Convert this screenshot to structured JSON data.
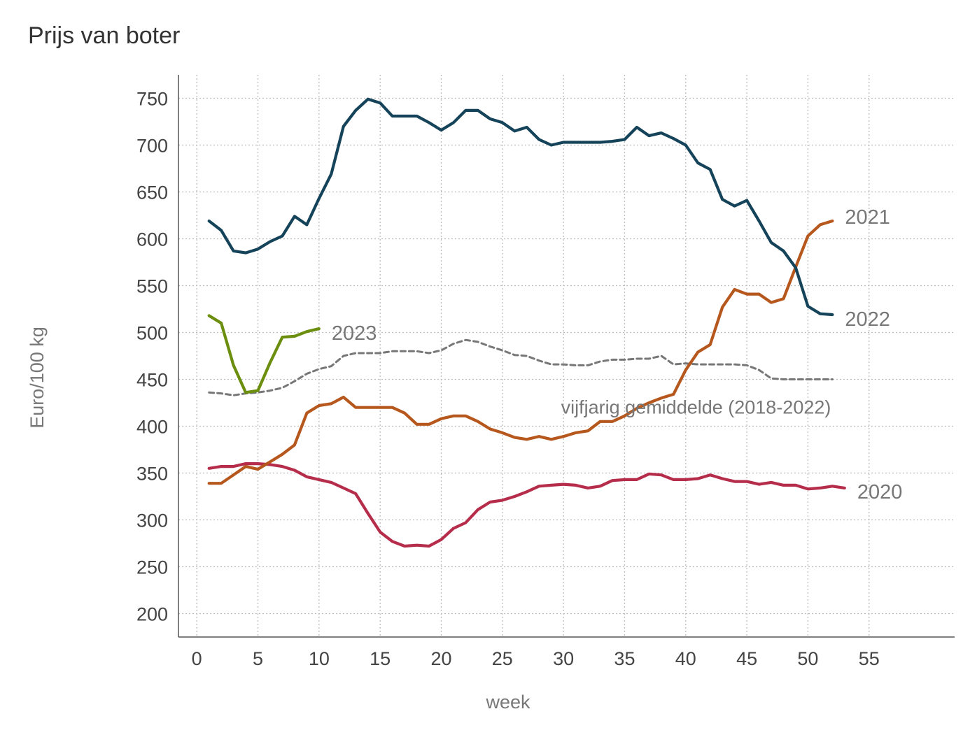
{
  "chart_data": {
    "type": "line",
    "title": "Prijs van boter",
    "xlabel": "week",
    "ylabel": "Euro/100 kg",
    "xlim": [
      -1.5,
      62
    ],
    "ylim": [
      175,
      775
    ],
    "xticks": [
      0,
      5,
      10,
      15,
      20,
      25,
      30,
      35,
      40,
      45,
      50,
      55
    ],
    "yticks": [
      200,
      250,
      300,
      350,
      400,
      450,
      500,
      550,
      600,
      650,
      700,
      750
    ],
    "grid": true,
    "legend": "direct labels at line ends",
    "series": [
      {
        "name": "2022",
        "color": "#15435a",
        "dashed": false,
        "x": [
          1,
          2,
          3,
          4,
          5,
          6,
          7,
          8,
          9,
          10,
          11,
          12,
          13,
          14,
          15,
          16,
          17,
          18,
          19,
          20,
          21,
          22,
          23,
          24,
          25,
          26,
          27,
          28,
          29,
          30,
          31,
          32,
          33,
          34,
          35,
          36,
          37,
          38,
          39,
          40,
          41,
          42,
          43,
          44,
          45,
          46,
          47,
          48,
          49,
          50,
          51,
          52
        ],
        "values": [
          619,
          609,
          587,
          585,
          589,
          597,
          603,
          624,
          615,
          643,
          669,
          720,
          737,
          749,
          745,
          731,
          731,
          731,
          724,
          716,
          724,
          737,
          737,
          728,
          724,
          715,
          719,
          706,
          700,
          703,
          703,
          703,
          703,
          704,
          706,
          719,
          710,
          713,
          707,
          700,
          681,
          674,
          642,
          635,
          641,
          619,
          596,
          587,
          569,
          528,
          520,
          519
        ]
      },
      {
        "name": "2021",
        "color": "#b6571d",
        "dashed": false,
        "x": [
          1,
          2,
          3,
          4,
          5,
          6,
          7,
          8,
          9,
          10,
          11,
          12,
          13,
          14,
          15,
          16,
          17,
          18,
          19,
          20,
          21,
          22,
          23,
          24,
          25,
          26,
          27,
          28,
          29,
          30,
          31,
          32,
          33,
          34,
          35,
          36,
          37,
          38,
          39,
          40,
          41,
          42,
          43,
          44,
          45,
          46,
          47,
          48,
          49,
          50,
          51,
          52
        ],
        "values": [
          339,
          339,
          348,
          357,
          354,
          362,
          370,
          380,
          414,
          422,
          424,
          431,
          420,
          420,
          420,
          420,
          414,
          402,
          402,
          408,
          411,
          411,
          405,
          397,
          393,
          388,
          386,
          389,
          386,
          389,
          393,
          395,
          405,
          405,
          411,
          419,
          425,
          430,
          434,
          460,
          479,
          487,
          527,
          546,
          541,
          541,
          532,
          536,
          570,
          603,
          615,
          619
        ]
      },
      {
        "name": "2023",
        "color": "#6b8e0e",
        "dashed": false,
        "x": [
          1,
          2,
          3,
          4,
          5,
          6,
          7,
          8,
          9,
          10
        ],
        "values": [
          518,
          510,
          465,
          436,
          438,
          468,
          495,
          496,
          501,
          504
        ]
      },
      {
        "name": "2020",
        "color": "#b52d4a",
        "dashed": false,
        "x": [
          1,
          2,
          3,
          4,
          5,
          6,
          7,
          8,
          9,
          10,
          11,
          12,
          13,
          14,
          15,
          16,
          17,
          18,
          19,
          20,
          21,
          22,
          23,
          24,
          25,
          26,
          27,
          28,
          29,
          30,
          31,
          32,
          33,
          34,
          35,
          36,
          37,
          38,
          39,
          40,
          41,
          42,
          43,
          44,
          45,
          46,
          47,
          48,
          49,
          50,
          51,
          52,
          53
        ],
        "values": [
          355,
          357,
          357,
          360,
          360,
          359,
          357,
          353,
          346,
          343,
          340,
          334,
          328,
          307,
          287,
          277,
          272,
          273,
          272,
          279,
          291,
          297,
          311,
          319,
          321,
          325,
          330,
          336,
          337,
          338,
          337,
          334,
          336,
          342,
          343,
          343,
          349,
          348,
          343,
          343,
          344,
          348,
          344,
          341,
          341,
          338,
          340,
          337,
          337,
          333,
          334,
          336,
          334
        ]
      },
      {
        "name": "vijfjarig gemiddelde (2018-2022)",
        "color": "#777777",
        "dashed": true,
        "x": [
          1,
          2,
          3,
          4,
          5,
          6,
          7,
          8,
          9,
          10,
          11,
          12,
          13,
          14,
          15,
          16,
          17,
          18,
          19,
          20,
          21,
          22,
          23,
          24,
          25,
          26,
          27,
          28,
          29,
          30,
          31,
          32,
          33,
          34,
          35,
          36,
          37,
          38,
          39,
          40,
          41,
          42,
          43,
          44,
          45,
          46,
          47,
          48,
          49,
          50,
          51,
          52
        ],
        "values": [
          436,
          435,
          433,
          435,
          436,
          438,
          441,
          448,
          456,
          461,
          464,
          475,
          478,
          478,
          478,
          480,
          480,
          480,
          478,
          481,
          488,
          492,
          490,
          485,
          481,
          476,
          475,
          470,
          466,
          466,
          465,
          465,
          469,
          471,
          471,
          472,
          472,
          475,
          466,
          467,
          466,
          466,
          466,
          466,
          465,
          460,
          451,
          450,
          450,
          450,
          450,
          450
        ]
      }
    ],
    "annotations": [
      {
        "text": "2021",
        "series": "2021"
      },
      {
        "text": "2022",
        "series": "2022"
      },
      {
        "text": "2023",
        "series": "2023"
      },
      {
        "text": "2020",
        "series": "2020"
      },
      {
        "text": "vijfjarig gemiddelde (2018-2022)",
        "series": "vijfjarig gemiddelde (2018-2022)"
      }
    ]
  }
}
